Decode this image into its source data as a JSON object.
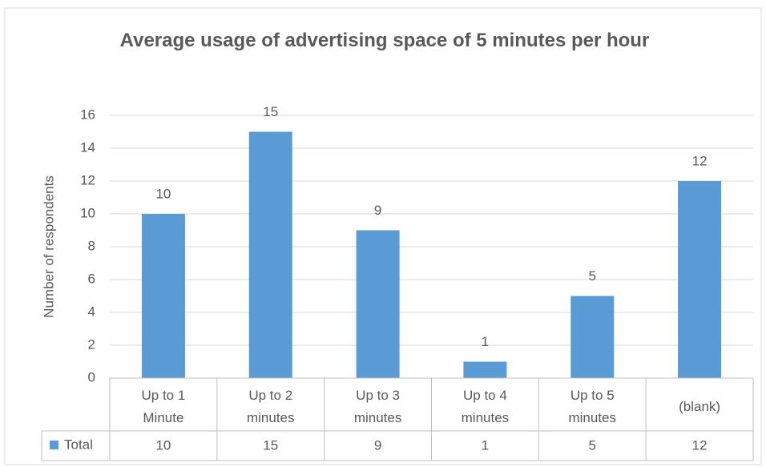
{
  "chart_data": {
    "type": "bar",
    "title": "Average usage of advertising space of 5 minutes per hour",
    "y_label": "Number of respondents",
    "categories": [
      "Up to 1 Minute",
      "Up to 2 minutes",
      "Up to 3 minutes",
      "Up to 4 minutes",
      "Up to 5 minutes",
      "(blank)"
    ],
    "series": [
      {
        "name": "Total",
        "color": "#5b9bd5",
        "values": [
          10,
          15,
          9,
          1,
          5,
          12
        ]
      }
    ],
    "ylim": [
      0,
      16
    ],
    "yticks": [
      0,
      2,
      4,
      6,
      8,
      10,
      12,
      14,
      16
    ],
    "grid": true,
    "data_labels": true,
    "data_table": true
  }
}
